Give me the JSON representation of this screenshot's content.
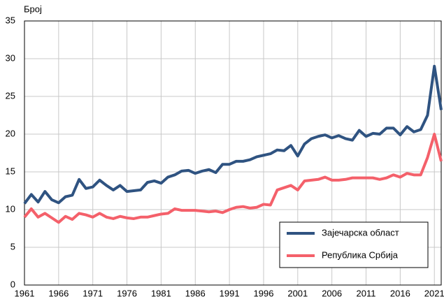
{
  "chart_data": {
    "type": "line",
    "y_label": "Број",
    "x": [
      1961,
      1962,
      1963,
      1964,
      1965,
      1966,
      1967,
      1968,
      1969,
      1970,
      1971,
      1972,
      1973,
      1974,
      1975,
      1976,
      1977,
      1978,
      1979,
      1980,
      1981,
      1982,
      1983,
      1984,
      1985,
      1986,
      1987,
      1988,
      1989,
      1990,
      1991,
      1992,
      1993,
      1994,
      1995,
      1996,
      1997,
      1998,
      1999,
      2000,
      2001,
      2002,
      2003,
      2004,
      2005,
      2006,
      2007,
      2008,
      2009,
      2010,
      2011,
      2012,
      2013,
      2014,
      2015,
      2016,
      2017,
      2018,
      2019,
      2020,
      2021,
      2022
    ],
    "series": [
      {
        "name": "Зајечарска област",
        "color": "#2f5381",
        "values": [
          10.8,
          12.0,
          11.0,
          12.4,
          11.3,
          10.9,
          11.7,
          11.9,
          14.0,
          12.8,
          13.0,
          13.9,
          13.2,
          12.6,
          13.2,
          12.4,
          12.5,
          12.6,
          13.6,
          13.8,
          13.5,
          14.3,
          14.6,
          15.1,
          15.2,
          14.8,
          15.1,
          15.3,
          14.9,
          16.0,
          16.0,
          16.4,
          16.4,
          16.6,
          17.0,
          17.2,
          17.4,
          17.9,
          17.8,
          18.5,
          17.1,
          18.7,
          19.4,
          19.7,
          19.9,
          19.5,
          19.8,
          19.4,
          19.2,
          20.5,
          19.7,
          20.1,
          20.0,
          20.8,
          20.8,
          19.9,
          21.0,
          20.3,
          20.6,
          22.5,
          29.0,
          23.2
        ]
      },
      {
        "name": "Република Србија",
        "color": "#f4606a",
        "values": [
          9.0,
          10.1,
          9.0,
          9.5,
          8.9,
          8.3,
          9.1,
          8.7,
          9.5,
          9.3,
          9.0,
          9.5,
          9.0,
          8.8,
          9.1,
          8.9,
          8.8,
          9.0,
          9.0,
          9.2,
          9.4,
          9.5,
          10.1,
          9.9,
          9.9,
          9.9,
          9.8,
          9.7,
          9.8,
          9.6,
          10.0,
          10.3,
          10.4,
          10.2,
          10.3,
          10.7,
          10.6,
          12.6,
          12.9,
          13.2,
          12.6,
          13.8,
          13.9,
          14.0,
          14.3,
          13.9,
          13.9,
          14.0,
          14.2,
          14.2,
          14.2,
          14.2,
          14.0,
          14.2,
          14.6,
          14.3,
          14.8,
          14.6,
          14.6,
          16.9,
          20.0,
          16.4
        ]
      }
    ],
    "xlim": [
      1961,
      2022
    ],
    "xticks": [
      1961,
      1966,
      1971,
      1976,
      1981,
      1986,
      1991,
      1996,
      2001,
      2006,
      2011,
      2016,
      2021
    ],
    "ylim": [
      0,
      35
    ],
    "yticks": [
      0,
      5,
      10,
      15,
      20,
      25,
      30,
      35
    ],
    "grid": true,
    "legend": "lower right"
  }
}
